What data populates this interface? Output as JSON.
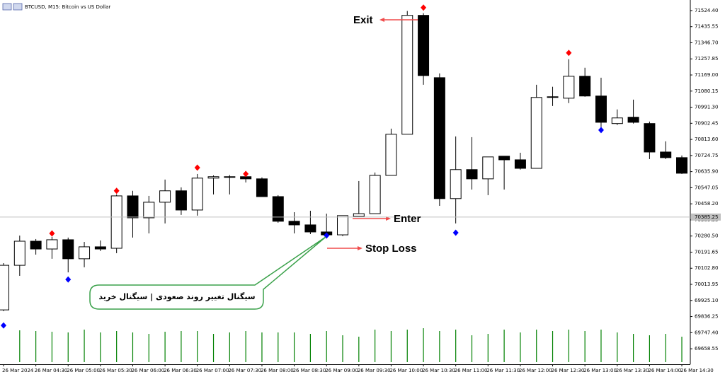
{
  "chart_data": {
    "type": "candlestick",
    "title": "BTCUSD, M15: Bitcoin vs US Dollar",
    "categories": [
      "26 Mar 2024",
      null,
      "26 Mar 04:30",
      null,
      "26 Mar 05:00",
      null,
      "26 Mar 05:30",
      null,
      "26 Mar 06:00",
      null,
      "26 Mar 06:30",
      null,
      "26 Mar 07:00",
      null,
      "26 Mar 07:30",
      null,
      "26 Mar 08:00",
      null,
      "26 Mar 08:30",
      null,
      "26 Mar 09:00",
      null,
      "26 Mar 09:30",
      null,
      "26 Mar 10:00",
      null,
      "26 Mar 10:30",
      null,
      "26 Mar 11:00",
      null,
      "26 Mar 11:30",
      null,
      "26 Mar 12:00",
      null,
      "26 Mar 12:30",
      null,
      "26 Mar 13:00",
      null,
      "26 Mar 13:30",
      null,
      "26 Mar 14:00",
      null,
      "26 Mar 14:30"
    ],
    "open": [
      69873,
      70119,
      70252,
      70209,
      70260,
      70155,
      70221,
      70213,
      70502,
      70381,
      70467,
      70530,
      70424,
      70600,
      70605,
      70608,
      70596,
      70498,
      70362,
      70342,
      70303,
      70287,
      70389,
      70404,
      70615,
      70842,
      71498,
      71154,
      70487,
      70647,
      70596,
      70721,
      70701,
      70654,
      71047,
      71041,
      71162,
      71053,
      70901,
      70936,
      70901,
      70744,
      70713
    ],
    "high": [
      70131,
      70283,
      70264,
      70276,
      70272,
      70248,
      70256,
      70510,
      70530,
      70502,
      70592,
      70549,
      70623,
      70615,
      70617,
      70615,
      70604,
      70506,
      70412,
      70420,
      70404,
      70393,
      70584,
      70631,
      70873,
      71522,
      71510,
      71178,
      70830,
      70826,
      70717,
      70721,
      70740,
      71115,
      71104,
      71256,
      71209,
      71154,
      70979,
      71033,
      70912,
      70803,
      70725
    ],
    "low": [
      69866,
      70061,
      70178,
      70155,
      70080,
      70108,
      70198,
      70186,
      70272,
      70295,
      70350,
      70397,
      70393,
      70510,
      70510,
      70576,
      70498,
      70354,
      70295,
      70291,
      70272,
      70280,
      70389,
      70404,
      70615,
      70842,
      71115,
      70447,
      70350,
      70537,
      70506,
      70537,
      70647,
      70654,
      70998,
      71014,
      71049,
      70881,
      70893,
      70901,
      70705,
      70705,
      70623
    ],
    "close": [
      70119,
      70252,
      70209,
      70260,
      70155,
      70221,
      70209,
      70502,
      70381,
      70467,
      70530,
      70424,
      70600,
      70608,
      70608,
      70596,
      70498,
      70362,
      70342,
      70303,
      70287,
      70393,
      70404,
      70615,
      70842,
      71498,
      71166,
      70487,
      70647,
      70596,
      70717,
      70701,
      70654,
      71045,
      71049,
      71162,
      71053,
      70908,
      70932,
      70908,
      70744,
      70713,
      70627
    ],
    "up_color": "#ffffff",
    "down_color": "#000000",
    "ylim": [
      69573,
      71571
    ],
    "yticks": [
      69658.55,
      {
        "value": 69747.4,
        "label": "69747.40"
      },
      69836.25,
      {
        "value": 69925.1,
        "label": "69925.10"
      },
      70013.95,
      {
        "value": 70102.8,
        "label": "70102.80"
      },
      70191.65,
      {
        "value": 70280.5,
        "label": "70280.50"
      },
      70369.35,
      {
        "value": 70458.2,
        "label": "70458.20"
      },
      70547.05,
      {
        "value": 70635.9,
        "label": "70635.90"
      },
      70724.75,
      {
        "value": 70813.6,
        "label": "70813.60"
      },
      70902.45,
      {
        "value": 70991.3,
        "label": "70991.30"
      },
      71080.15,
      {
        "value": 71169,
        "label": "71169.00"
      },
      71257.85,
      {
        "value": 71346.7,
        "label": "71346.70"
      },
      71435.55,
      {
        "value": 71524.4,
        "label": "71524.40"
      }
    ],
    "current_price": 70385.25,
    "volumes": [
      null,
      45,
      44,
      43,
      42,
      46,
      42,
      44,
      42,
      40,
      43,
      44,
      44,
      40,
      42,
      44,
      42,
      42,
      42,
      40,
      44,
      38,
      36,
      46,
      44,
      46,
      48,
      44,
      46,
      38,
      40,
      46,
      42,
      46,
      44,
      46,
      44,
      46,
      42,
      40,
      38,
      40,
      36
    ],
    "volume_lim": [
      0,
      50
    ],
    "volume_color": "#008000",
    "sell_signals": [
      null,
      null,
      null,
      70295,
      null,
      null,
      null,
      70530,
      null,
      null,
      null,
      null,
      70658,
      null,
      null,
      70623,
      null,
      null,
      null,
      null,
      null,
      null,
      null,
      null,
      null,
      null,
      71541,
      null,
      null,
      null,
      null,
      null,
      null,
      null,
      null,
      71291,
      null,
      null,
      null,
      null,
      null,
      null,
      null
    ],
    "buy_signals": [
      69787,
      null,
      null,
      null,
      70041,
      null,
      null,
      null,
      null,
      null,
      null,
      null,
      null,
      null,
      null,
      null,
      null,
      null,
      null,
      null,
      70283,
      null,
      null,
      null,
      null,
      null,
      null,
      null,
      70299,
      null,
      null,
      null,
      null,
      null,
      null,
      null,
      null,
      70865,
      null,
      null,
      null,
      null,
      null
    ],
    "sell_color": "#ff0000",
    "buy_color": "#0000ff",
    "annotations": [
      {
        "text": "Exit",
        "color": "#1f44d8"
      },
      {
        "text": "Enter",
        "color": "#2f9e44"
      },
      {
        "text": "Stop Loss",
        "color": "#f04b4b"
      },
      {
        "text": "سیگنال تغییر روند صعودی | سیگنال خرید",
        "color": "#000000"
      }
    ]
  }
}
